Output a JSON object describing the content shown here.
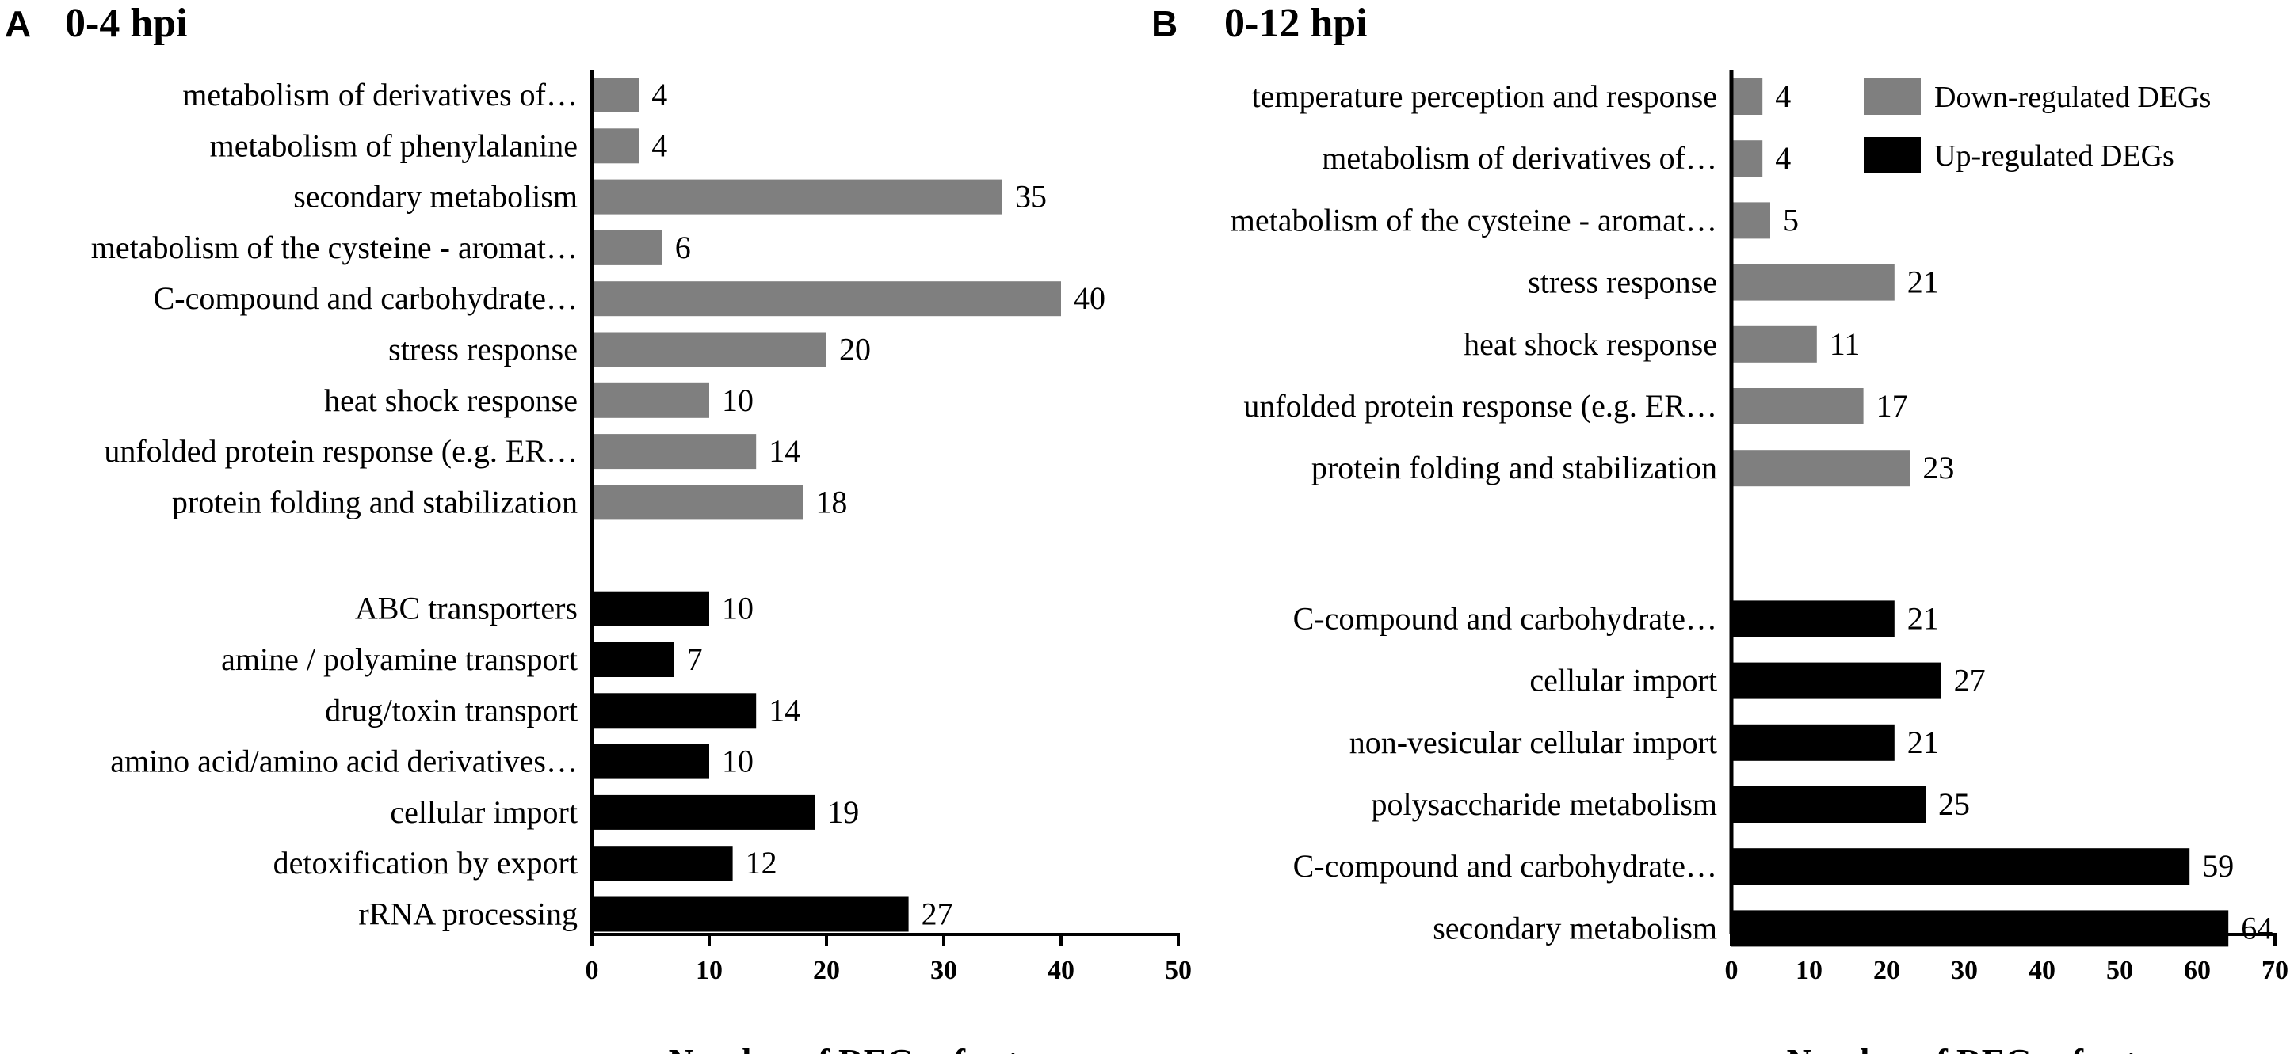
{
  "chart_data": [
    {
      "type": "bar",
      "orientation": "horizontal",
      "panel_letter": "A",
      "title": "0-4 hpi",
      "xlabel": "Number of DEGs of category",
      "ylabel": "",
      "xlim": [
        0,
        50
      ],
      "ticks": [
        "0",
        "10",
        "20",
        "30",
        "40",
        "50"
      ],
      "grid": false,
      "series": [
        {
          "name": "Down-regulated DEGs",
          "color": "#7f7f7f",
          "categories": [
            "metabolism of derivatives of…",
            "metabolism of phenylalanine",
            "secondary metabolism",
            "metabolism of the cysteine - aromat…",
            "C-compound and carbohydrate…",
            "stress response",
            "heat shock response",
            "unfolded protein response (e.g. ER…",
            "protein folding and stabilization"
          ],
          "values": [
            4,
            4,
            35,
            6,
            40,
            20,
            10,
            14,
            18
          ]
        },
        {
          "name": "Up-regulated DEGs",
          "color": "#000000",
          "categories": [
            "ABC transporters",
            "amine / polyamine transport",
            "drug/toxin transport",
            "amino acid/amino acid derivatives…",
            "cellular import",
            "detoxification by export",
            "rRNA processing"
          ],
          "values": [
            10,
            7,
            14,
            10,
            19,
            12,
            27
          ]
        }
      ]
    },
    {
      "type": "bar",
      "orientation": "horizontal",
      "panel_letter": "B",
      "title": "0-12 hpi",
      "xlabel": "Number of DEGs of category",
      "ylabel": "",
      "xlim": [
        0,
        70
      ],
      "ticks": [
        "0",
        "10",
        "20",
        "30",
        "40",
        "50",
        "60",
        "70"
      ],
      "grid": false,
      "legend": {
        "placement": "top-right",
        "entries": [
          {
            "label": "Down-regulated DEGs",
            "color": "#7f7f7f"
          },
          {
            "label": "Up-regulated DEGs",
            "color": "#000000"
          }
        ]
      },
      "series": [
        {
          "name": "Down-regulated DEGs",
          "color": "#7f7f7f",
          "categories": [
            "temperature perception and response",
            "metabolism of derivatives of…",
            "metabolism of the cysteine - aromat…",
            "stress response",
            "heat shock response",
            "unfolded protein response (e.g. ER…",
            "protein folding and stabilization"
          ],
          "values": [
            4,
            4,
            5,
            21,
            11,
            17,
            23
          ]
        },
        {
          "name": "Up-regulated DEGs",
          "color": "#000000",
          "categories": [
            "C-compound and carbohydrate…",
            "cellular import",
            "non-vesicular cellular import",
            "polysaccharide metabolism",
            "C-compound and carbohydrate…",
            "secondary metabolism"
          ],
          "values": [
            21,
            27,
            21,
            25,
            59,
            64
          ]
        }
      ]
    }
  ]
}
